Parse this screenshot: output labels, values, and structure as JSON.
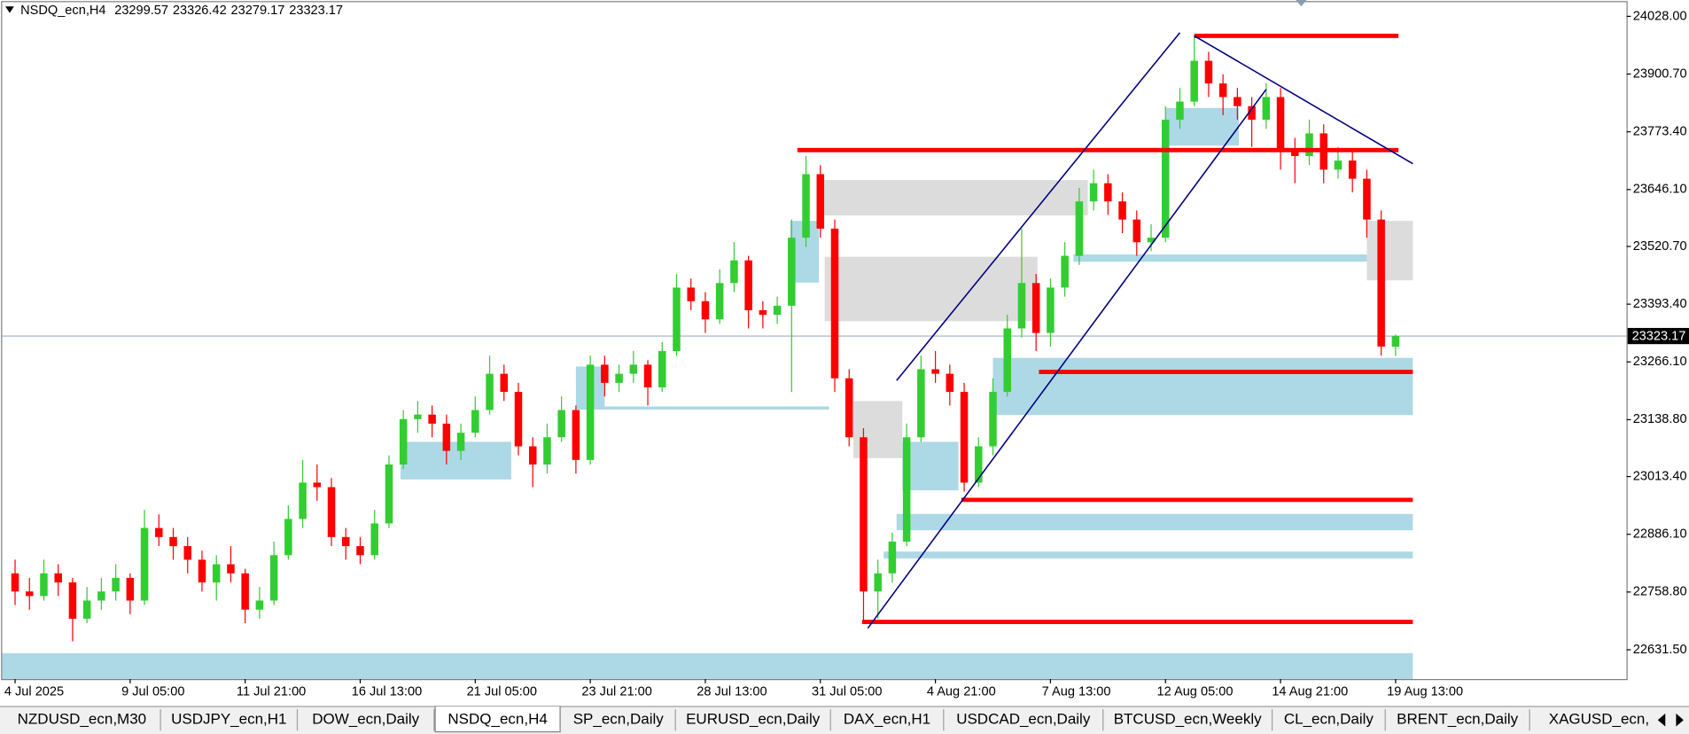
{
  "chart_data": {
    "type": "candlestick",
    "symbol": "NSDQ_ecn,H4",
    "up_color": "#32cd32",
    "down_color": "#ff0000",
    "categories": [
      "4 Jul 2025",
      null,
      null,
      null,
      null,
      null,
      null,
      null,
      "9 Jul 05:00",
      null,
      null,
      null,
      null,
      null,
      null,
      null,
      "11 Jul 21:00",
      null,
      null,
      null,
      null,
      null,
      null,
      null,
      "16 Jul 13:00",
      null,
      null,
      null,
      null,
      null,
      null,
      null,
      "21 Jul 05:00",
      null,
      null,
      null,
      null,
      null,
      null,
      null,
      "23 Jul 21:00",
      null,
      null,
      null,
      null,
      null,
      null,
      null,
      "28 Jul 13:00",
      null,
      null,
      null,
      null,
      null,
      null,
      null,
      "31 Jul 05:00",
      null,
      null,
      null,
      null,
      null,
      null,
      null,
      "4 Aug 21:00",
      null,
      null,
      null,
      null,
      null,
      null,
      null,
      "7 Aug 13:00",
      null,
      null,
      null,
      null,
      null,
      null,
      null,
      "12 Aug 05:00",
      null,
      null,
      null,
      null,
      null,
      null,
      null,
      "14 Aug 21:00",
      null,
      null,
      null,
      null,
      null,
      null,
      null,
      "19 Aug 13:00"
    ],
    "ohlc": [
      [
        22800,
        22830,
        22730,
        22760
      ],
      [
        22760,
        22790,
        22720,
        22750
      ],
      [
        22750,
        22830,
        22740,
        22800
      ],
      [
        22800,
        22820,
        22750,
        22780
      ],
      [
        22780,
        22790,
        22650,
        22700
      ],
      [
        22700,
        22770,
        22690,
        22740
      ],
      [
        22740,
        22790,
        22720,
        22760
      ],
      [
        22760,
        22820,
        22740,
        22790
      ],
      [
        22790,
        22800,
        22710,
        22740
      ],
      [
        22740,
        22940,
        22730,
        22900
      ],
      [
        22900,
        22930,
        22860,
        22880
      ],
      [
        22880,
        22900,
        22830,
        22860
      ],
      [
        22860,
        22880,
        22800,
        22830
      ],
      [
        22830,
        22850,
        22760,
        22780
      ],
      [
        22780,
        22840,
        22740,
        22820
      ],
      [
        22820,
        22860,
        22780,
        22800
      ],
      [
        22800,
        22810,
        22690,
        22720
      ],
      [
        22720,
        22770,
        22700,
        22740
      ],
      [
        22740,
        22870,
        22730,
        22840
      ],
      [
        22840,
        22950,
        22830,
        22920
      ],
      [
        22920,
        23050,
        22900,
        23000
      ],
      [
        23000,
        23040,
        22960,
        22990
      ],
      [
        22990,
        23010,
        22860,
        22880
      ],
      [
        22880,
        22900,
        22830,
        22860
      ],
      [
        22860,
        22880,
        22820,
        22840
      ],
      [
        22840,
        22940,
        22830,
        22910
      ],
      [
        22910,
        23060,
        22900,
        23040
      ],
      [
        23040,
        23160,
        23030,
        23140
      ],
      [
        23140,
        23180,
        23110,
        23150
      ],
      [
        23150,
        23170,
        23100,
        23130
      ],
      [
        23130,
        23150,
        23040,
        23070
      ],
      [
        23070,
        23130,
        23050,
        23110
      ],
      [
        23110,
        23190,
        23100,
        23160
      ],
      [
        23160,
        23280,
        23150,
        23240
      ],
      [
        23240,
        23260,
        23180,
        23200
      ],
      [
        23200,
        23220,
        23060,
        23080
      ],
      [
        23080,
        23100,
        22990,
        23040
      ],
      [
        23040,
        23130,
        23020,
        23100
      ],
      [
        23100,
        23190,
        23090,
        23160
      ],
      [
        23160,
        23170,
        23020,
        23050
      ],
      [
        23050,
        23280,
        23040,
        23260
      ],
      [
        23260,
        23280,
        23190,
        23220
      ],
      [
        23220,
        23260,
        23200,
        23240
      ],
      [
        23240,
        23290,
        23220,
        23260
      ],
      [
        23260,
        23270,
        23170,
        23210
      ],
      [
        23210,
        23310,
        23200,
        23290
      ],
      [
        23290,
        23460,
        23280,
        23430
      ],
      [
        23430,
        23450,
        23380,
        23400
      ],
      [
        23400,
        23420,
        23330,
        23360
      ],
      [
        23360,
        23470,
        23350,
        23440
      ],
      [
        23440,
        23530,
        23420,
        23490
      ],
      [
        23490,
        23500,
        23340,
        23380
      ],
      [
        23380,
        23400,
        23340,
        23370
      ],
      [
        23370,
        23410,
        23350,
        23390
      ],
      [
        23390,
        23580,
        23200,
        23540
      ],
      [
        23540,
        23720,
        23520,
        23680
      ],
      [
        23680,
        23700,
        23540,
        23560
      ],
      [
        23560,
        23580,
        23200,
        23230
      ],
      [
        23230,
        23250,
        23080,
        23100
      ],
      [
        23100,
        23120,
        22690,
        22760
      ],
      [
        22760,
        22830,
        22700,
        22800
      ],
      [
        22800,
        22890,
        22780,
        22870
      ],
      [
        22870,
        23130,
        22860,
        23100
      ],
      [
        23100,
        23280,
        23090,
        23250
      ],
      [
        23250,
        23290,
        23220,
        23240
      ],
      [
        23240,
        23260,
        23170,
        23200
      ],
      [
        23200,
        23220,
        22980,
        23000
      ],
      [
        23000,
        23100,
        22990,
        23080
      ],
      [
        23080,
        23230,
        23060,
        23200
      ],
      [
        23200,
        23370,
        23190,
        23340
      ],
      [
        23340,
        23560,
        23320,
        23440
      ],
      [
        23440,
        23460,
        23290,
        23330
      ],
      [
        23330,
        23450,
        23300,
        23430
      ],
      [
        23430,
        23530,
        23410,
        23500
      ],
      [
        23500,
        23650,
        23480,
        23620
      ],
      [
        23620,
        23690,
        23600,
        23660
      ],
      [
        23660,
        23680,
        23590,
        23620
      ],
      [
        23620,
        23640,
        23550,
        23580
      ],
      [
        23580,
        23600,
        23500,
        23530
      ],
      [
        23530,
        23570,
        23510,
        23540
      ],
      [
        23540,
        23830,
        23530,
        23800
      ],
      [
        23800,
        23870,
        23780,
        23840
      ],
      [
        23840,
        23985,
        23830,
        23930
      ],
      [
        23930,
        23950,
        23850,
        23880
      ],
      [
        23880,
        23900,
        23810,
        23850
      ],
      [
        23850,
        23870,
        23800,
        23830
      ],
      [
        23830,
        23850,
        23740,
        23800
      ],
      [
        23800,
        23880,
        23780,
        23850
      ],
      [
        23850,
        23870,
        23690,
        23730
      ],
      [
        23730,
        23760,
        23660,
        23720
      ],
      [
        23720,
        23800,
        23700,
        23770
      ],
      [
        23770,
        23790,
        23660,
        23690
      ],
      [
        23690,
        23740,
        23670,
        23710
      ],
      [
        23710,
        23730,
        23640,
        23670
      ],
      [
        23670,
        23690,
        23540,
        23580
      ],
      [
        23580,
        23600,
        23280,
        23300
      ],
      [
        23299.57,
        23326.42,
        23279.17,
        23323.17
      ]
    ],
    "ylim": [
      22567,
      24064
    ],
    "yticks": [
      {
        "value": 24028,
        "label": "24028.00"
      },
      {
        "value": 23900.7,
        "label": "23900.70"
      },
      {
        "value": 23773.4,
        "label": "23773.40"
      },
      {
        "value": 23646.1,
        "label": "23646.10"
      },
      {
        "value": 23520.7,
        "label": "23520.70"
      },
      {
        "value": 23393.4,
        "label": "23393.40"
      },
      {
        "value": 23266.1,
        "label": "23266.10"
      },
      {
        "value": 23138.8,
        "label": "23138.80"
      },
      {
        "value": 23013.4,
        "label": "23013.40"
      },
      {
        "value": 22886.1,
        "label": "22886.10"
      },
      {
        "value": 22758.8,
        "label": "22758.80"
      },
      {
        "value": 22631.5,
        "label": "22631.50"
      }
    ],
    "zones": [
      {
        "from": 55.9,
        "to": 74.6,
        "low": 23589,
        "high": 23667,
        "color": "#dcdcdc"
      },
      {
        "from": 56.3,
        "to": 71.1,
        "low": 23356,
        "high": 23498,
        "color": "#dcdcdc"
      },
      {
        "from": 39,
        "to": 41,
        "low": 23161,
        "high": 23256,
        "color": "#add8e6"
      },
      {
        "from": 41,
        "to": 56.6,
        "low": 23161,
        "high": 23168,
        "color": "#add8e6"
      },
      {
        "from": 68,
        "to": 97.2,
        "low": 23149,
        "high": 23275,
        "color": "#add8e6"
      },
      {
        "from": 61.3,
        "to": 97.2,
        "low": 22895,
        "high": 22931,
        "color": "#add8e6"
      },
      {
        "from": 60.4,
        "to": 97.2,
        "low": 22833,
        "high": 22848,
        "color": "#add8e6"
      },
      {
        "from": -0.9,
        "to": 97.2,
        "low": 22567,
        "high": 22624,
        "color": "#add8e6"
      },
      {
        "from": 73.6,
        "to": 94,
        "low": 23487,
        "high": 23503,
        "color": "#add8e6"
      },
      {
        "from": 80,
        "to": 85.1,
        "low": 23743,
        "high": 23826,
        "color": "#add8e6"
      },
      {
        "from": 94,
        "to": 97.2,
        "low": 23446,
        "high": 23577,
        "color": "#dcdcdc"
      },
      {
        "from": 26.8,
        "to": 34.5,
        "low": 23007,
        "high": 23090,
        "color": "#add8e6"
      },
      {
        "from": 53.9,
        "to": 55.9,
        "low": 23441,
        "high": 23577,
        "color": "#add8e6"
      },
      {
        "from": 58.3,
        "to": 61.7,
        "low": 23054,
        "high": 23180,
        "color": "#dcdcdc"
      },
      {
        "from": 61.7,
        "to": 65.6,
        "low": 22983,
        "high": 23090,
        "color": "#add8e6"
      }
    ],
    "levels": [
      {
        "from": 82,
        "to": 96.2,
        "value": 23985
      },
      {
        "from": 54.4,
        "to": 96.2,
        "value": 23733
      },
      {
        "from": 71.2,
        "to": 97.2,
        "value": 23244
      },
      {
        "from": 65.8,
        "to": 97.2,
        "value": 22962
      },
      {
        "from": 58.9,
        "to": 97.2,
        "value": 22693
      }
    ],
    "level_color": "#ff0000",
    "trendlines": [
      {
        "x": [
          61.3,
          81
        ],
        "y": [
          23225,
          23992
        ]
      },
      {
        "x": [
          59.3,
          87
        ],
        "y": [
          22679,
          23867
        ]
      },
      {
        "x": [
          82,
          97.2
        ],
        "y": [
          23985,
          23703
        ]
      }
    ],
    "trendline_color": "#000080"
  },
  "tabs": [
    "NZDUSD_ecn,M30",
    "USDJPY_ecn,H1",
    "DOW_ecn,Daily",
    "NSDQ_ecn,H4",
    "SP_ecn,Daily",
    "EURUSD_ecn,Daily",
    "DAX_ecn,H1",
    "USDCAD_ecn,Daily",
    "BTCUSD_ecn,Weekly",
    "CL_ecn,Daily",
    "BRENT_ecn,Daily",
    "XAGUSD_ecn,D"
  ],
  "active_tab": 3
}
